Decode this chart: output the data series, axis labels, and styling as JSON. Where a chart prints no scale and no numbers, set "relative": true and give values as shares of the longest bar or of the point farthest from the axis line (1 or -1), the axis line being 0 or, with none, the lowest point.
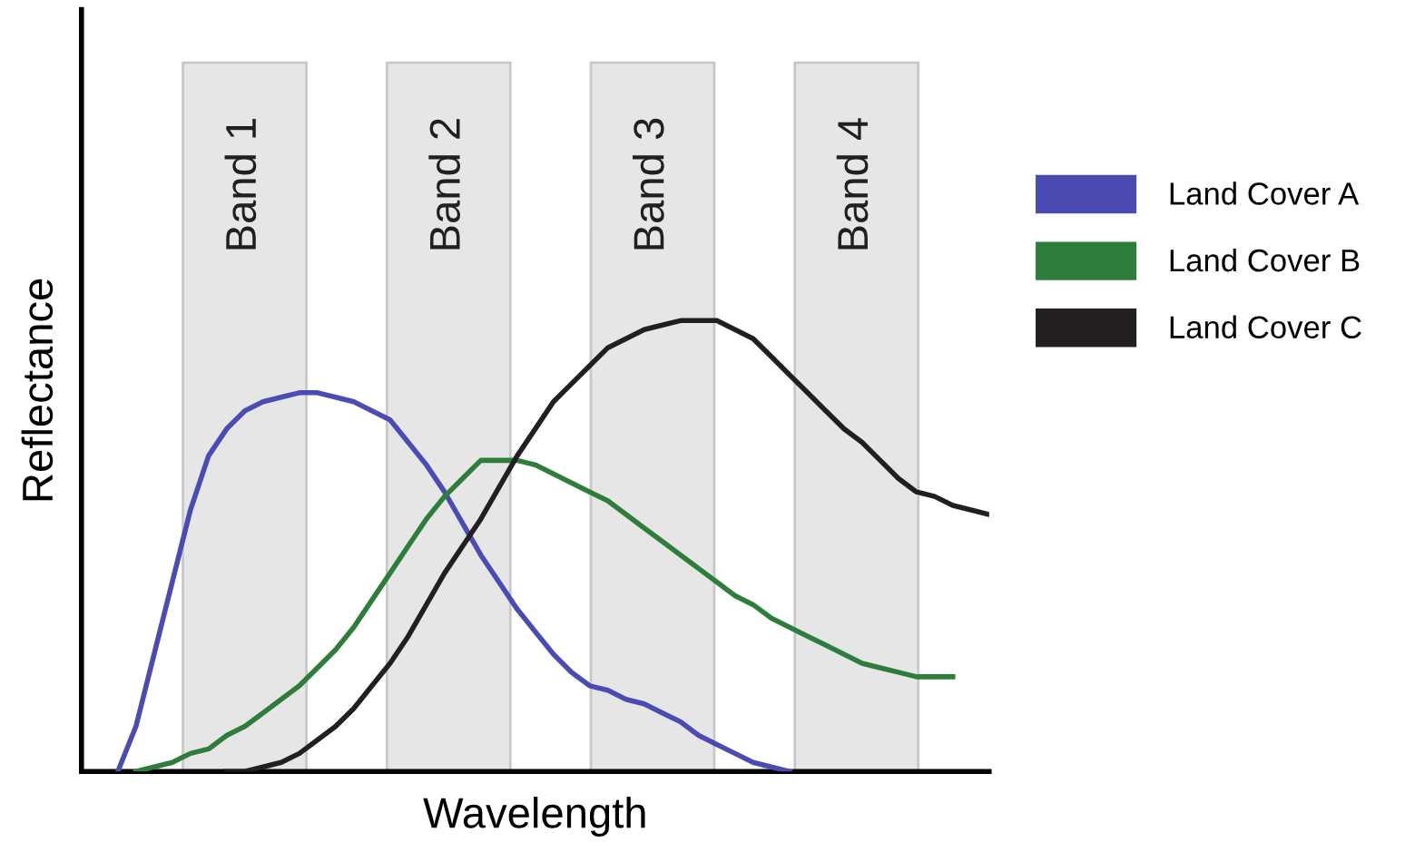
{
  "chart_data": {
    "type": "line",
    "relative": true,
    "xlabel": "Wavelength",
    "ylabel": "Reflectance",
    "categories": [
      null,
      null,
      null,
      null,
      null,
      null,
      null,
      null,
      null,
      null,
      null,
      null,
      null,
      null,
      null,
      null,
      null,
      null,
      null,
      null,
      null,
      null,
      null,
      null,
      null,
      null,
      null,
      null,
      null,
      null,
      null,
      null,
      null,
      null,
      null,
      null,
      null,
      null,
      null,
      null,
      null,
      null,
      null,
      null,
      null,
      null,
      null,
      null,
      null,
      null,
      null
    ],
    "series": [
      {
        "name": "Land Cover A",
        "color": "#4b4bb4",
        "values": [
          null,
          null,
          0,
          0.1,
          0.26,
          0.42,
          0.58,
          0.7,
          0.76,
          0.8,
          0.82,
          0.83,
          0.84,
          0.84,
          0.83,
          0.82,
          0.8,
          0.78,
          0.73,
          0.68,
          0.62,
          0.55,
          0.48,
          0.42,
          0.36,
          0.31,
          0.26,
          0.22,
          0.19,
          0.18,
          0.16,
          0.15,
          0.13,
          0.11,
          0.08,
          0.06,
          0.04,
          0.02,
          0.01,
          0,
          null,
          null,
          null,
          null,
          null,
          null,
          null,
          null,
          null,
          null,
          null
        ]
      },
      {
        "name": "Land Cover B",
        "color": "#2f7d3a",
        "values": [
          null,
          null,
          null,
          0,
          0.01,
          0.02,
          0.04,
          0.05,
          0.08,
          0.1,
          0.13,
          0.16,
          0.19,
          0.23,
          0.27,
          0.32,
          0.38,
          0.44,
          0.5,
          0.56,
          0.61,
          0.65,
          0.69,
          0.69,
          0.69,
          0.68,
          0.66,
          0.64,
          0.62,
          0.6,
          0.57,
          0.54,
          0.51,
          0.48,
          0.45,
          0.42,
          0.39,
          0.37,
          0.34,
          0.32,
          0.3,
          0.28,
          0.26,
          0.24,
          0.23,
          0.22,
          0.21,
          0.21,
          0.21,
          null,
          null
        ]
      },
      {
        "name": "Land Cover C",
        "color": "#231f20",
        "values": [
          null,
          null,
          null,
          null,
          null,
          null,
          null,
          null,
          0,
          0.0,
          0.01,
          0.02,
          0.04,
          0.07,
          0.1,
          0.14,
          0.19,
          0.24,
          0.3,
          0.37,
          0.44,
          0.5,
          0.56,
          0.63,
          0.7,
          0.76,
          0.82,
          0.86,
          0.9,
          0.94,
          0.96,
          0.98,
          0.99,
          1.0,
          1.0,
          1.0,
          0.98,
          0.96,
          0.92,
          0.88,
          0.84,
          0.8,
          0.76,
          0.73,
          0.69,
          0.65,
          0.62,
          0.61,
          0.59,
          0.58,
          0.57
        ]
      }
    ],
    "annotations": [
      "Band 1",
      "Band 2",
      "Band 3",
      "Band 4"
    ],
    "legend": "right",
    "marker": "none",
    "line_style": "solid"
  }
}
